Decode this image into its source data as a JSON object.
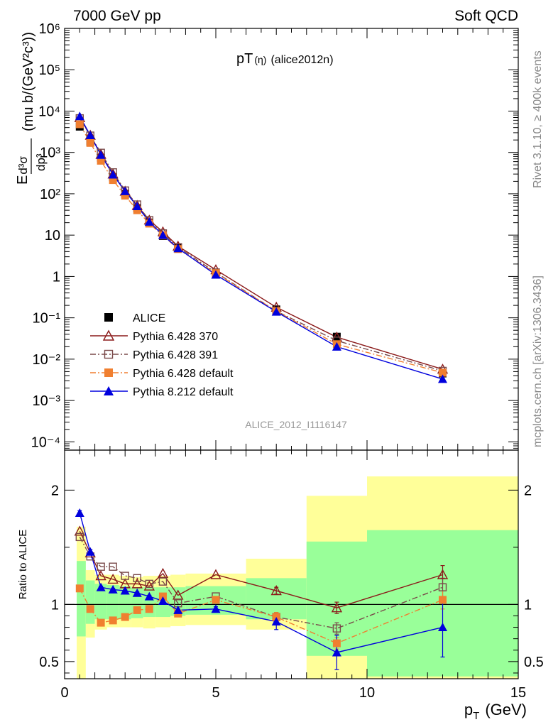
{
  "header": {
    "left": "7000 GeV pp",
    "right": "Soft QCD"
  },
  "side_text": {
    "rivet": "Rivet 3.1.10, ≥ 400k events",
    "mcplots": "mcplots.cern.ch [arXiv:1306.3436]"
  },
  "chart_data": [
    {
      "type": "line",
      "panel": "main",
      "title": "pT(η) (alice2012n)",
      "title_main": "pT",
      "title_paren": "(η)",
      "title_suffix": "(alice2012n)",
      "watermark": "ALICE_2012_I1116147",
      "ylabel_parts": {
        "E": "E",
        "d3sigma": "d³σ",
        "dp3": "dp³",
        "units": "(mu b/(GeV²c³))"
      },
      "xlim": [
        0,
        15
      ],
      "ylim_log10": [
        -4.2,
        6
      ],
      "y_tick_labels": [
        "10⁻⁴",
        "10⁻³",
        "10⁻²",
        "10⁻¹",
        "1",
        "10",
        "10²",
        "10³",
        "10⁴",
        "10⁵",
        "10⁶"
      ],
      "y_tick_values": [
        0.0001,
        0.001,
        0.01,
        0.1,
        1,
        10,
        100,
        1000,
        10000,
        100000,
        1000000
      ],
      "legend": [
        "ALICE",
        "Pythia 6.428 370",
        "Pythia 6.428 391",
        "Pythia 6.428 default",
        "Pythia 8.212 default"
      ],
      "series": [
        {
          "name": "ALICE",
          "color": "#000000",
          "marker": "square-filled",
          "line": "none",
          "x": [
            0.5,
            0.85,
            1.2,
            1.6,
            2.0,
            2.4,
            2.8,
            3.25,
            3.75,
            5.0,
            7.0,
            9.0,
            12.5
          ],
          "values": [
            4200,
            1800,
            740,
            250,
            100,
            45,
            20,
            9.5,
            5.0,
            1.15,
            0.16,
            0.035,
            0.0045
          ]
        },
        {
          "name": "Pythia 6.428 370",
          "color": "#8b1a1a",
          "marker": "triangle-open",
          "line": "solid",
          "x": [
            0.5,
            0.85,
            1.2,
            1.6,
            2.0,
            2.4,
            2.8,
            3.25,
            3.75,
            5.0,
            7.0,
            9.0,
            12.5
          ],
          "values": [
            6900,
            2600,
            900,
            300,
            115,
            52,
            23,
            12,
            5.4,
            1.45,
            0.18,
            0.034,
            0.0057
          ]
        },
        {
          "name": "Pythia 6.428 391",
          "color": "#7a4a4a",
          "marker": "square-open",
          "line": "dashdot",
          "x": [
            0.5,
            0.85,
            1.2,
            1.6,
            2.0,
            2.4,
            2.8,
            3.25,
            3.75,
            5.0,
            7.0,
            9.0,
            12.5
          ],
          "values": [
            6700,
            2550,
            980,
            330,
            120,
            55,
            23,
            11,
            5.1,
            1.25,
            0.145,
            0.028,
            0.0052
          ]
        },
        {
          "name": "Pythia 6.428 default",
          "color": "#f07f30",
          "marker": "square-filled",
          "line": "dashdot",
          "x": [
            0.5,
            0.85,
            1.2,
            1.6,
            2.0,
            2.4,
            2.8,
            3.25,
            3.75,
            5.0,
            7.0,
            9.0,
            12.5
          ],
          "values": [
            4800,
            1700,
            630,
            215,
            90,
            40,
            19,
            9.8,
            4.6,
            1.2,
            0.145,
            0.023,
            0.0047
          ]
        },
        {
          "name": "Pythia 8.212 default",
          "color": "#0000dd",
          "marker": "triangle-filled",
          "line": "solid",
          "x": [
            0.5,
            0.85,
            1.2,
            1.6,
            2.0,
            2.4,
            2.8,
            3.25,
            3.75,
            5.0,
            7.0,
            9.0,
            12.5
          ],
          "values": [
            7500,
            2600,
            870,
            290,
            115,
            50,
            21,
            10,
            4.8,
            1.1,
            0.14,
            0.02,
            0.0033
          ]
        }
      ]
    },
    {
      "type": "line",
      "panel": "ratio",
      "ylabel": "Ratio to ALICE",
      "xlabel_main": "p",
      "xlabel_sub": "T",
      "xlabel_units": "(GeV)",
      "xlim": [
        0,
        15
      ],
      "ylim": [
        0.35,
        2.35
      ],
      "x_tick_labels": [
        "0",
        "5",
        "10",
        "15"
      ],
      "x_tick_values": [
        0,
        5,
        10,
        15
      ],
      "y_tick_labels": [
        "0.5",
        "1",
        "2"
      ],
      "y_tick_values": [
        0.5,
        1,
        2
      ],
      "bands": {
        "edges": [
          0.4,
          0.7,
          1.0,
          1.4,
          1.8,
          2.2,
          2.6,
          3.0,
          3.5,
          4.0,
          6.0,
          8.0,
          10.0,
          15.0
        ],
        "green_lo": [
          0.72,
          0.83,
          0.87,
          0.87,
          0.87,
          0.88,
          0.89,
          0.89,
          0.9,
          0.91,
          0.87,
          0.55,
          0.37
        ],
        "green_hi": [
          1.38,
          1.21,
          1.18,
          1.17,
          1.16,
          1.15,
          1.15,
          1.15,
          1.15,
          1.16,
          1.23,
          1.55,
          1.65
        ],
        "yellow_lo": [
          0.35,
          0.71,
          0.78,
          0.8,
          0.8,
          0.8,
          0.79,
          0.8,
          0.81,
          0.82,
          0.78,
          0.35,
          0.35
        ],
        "yellow_hi": [
          1.68,
          1.3,
          1.26,
          1.26,
          1.25,
          1.24,
          1.25,
          1.25,
          1.26,
          1.27,
          1.4,
          1.95,
          2.12
        ]
      },
      "series": [
        {
          "name": "Pythia 6.428 370",
          "color": "#8b1a1a",
          "marker": "triangle-open",
          "line": "solid",
          "x": [
            0.5,
            0.85,
            1.2,
            1.6,
            2.0,
            2.4,
            2.8,
            3.25,
            3.75,
            5.0,
            7.0,
            9.0,
            12.5
          ],
          "values": [
            1.64,
            1.45,
            1.25,
            1.22,
            1.18,
            1.18,
            1.16,
            1.27,
            1.08,
            1.26,
            1.12,
            0.97,
            1.26
          ],
          "err": [
            0,
            0,
            0,
            0,
            0,
            0,
            0,
            0,
            0,
            0,
            0.03,
            0.05,
            0.08
          ]
        },
        {
          "name": "Pythia 6.428 391",
          "color": "#7a4a4a",
          "marker": "square-open",
          "line": "dashdot",
          "x": [
            0.5,
            0.85,
            1.2,
            1.6,
            2.0,
            2.4,
            2.8,
            3.25,
            3.75,
            5.0,
            7.0,
            9.0,
            12.5
          ],
          "values": [
            1.59,
            1.42,
            1.33,
            1.33,
            1.25,
            1.23,
            1.18,
            1.2,
            1.01,
            1.07,
            0.89,
            0.79,
            1.15
          ],
          "err": [
            0,
            0,
            0,
            0,
            0,
            0,
            0,
            0,
            0,
            0,
            0.04,
            0.05,
            0.08
          ]
        },
        {
          "name": "Pythia 6.428 default",
          "color": "#f07f30",
          "marker": "square-filled",
          "line": "dashdot",
          "x": [
            0.5,
            0.85,
            1.2,
            1.6,
            2.0,
            2.4,
            2.8,
            3.25,
            3.75,
            5.0,
            7.0,
            9.0,
            12.5
          ],
          "values": [
            1.14,
            0.96,
            0.84,
            0.86,
            0.89,
            0.95,
            0.96,
            1.07,
            0.92,
            1.04,
            0.89,
            0.66,
            1.04
          ],
          "err": [
            0,
            0,
            0,
            0,
            0,
            0,
            0,
            0,
            0,
            0,
            0.04,
            0.05,
            0.08
          ]
        },
        {
          "name": "Pythia 8.212 default",
          "color": "#0000dd",
          "marker": "triangle-filled",
          "line": "solid",
          "x": [
            0.5,
            0.85,
            1.2,
            1.6,
            2.0,
            2.4,
            2.8,
            3.25,
            3.75,
            5.0,
            7.0,
            9.0,
            12.5
          ],
          "values": [
            1.8,
            1.46,
            1.15,
            1.13,
            1.12,
            1.1,
            1.07,
            1.03,
            0.95,
            0.96,
            0.85,
            0.58,
            0.8
          ],
          "err": [
            0.02,
            0.02,
            0.01,
            0.01,
            0.01,
            0.01,
            0.01,
            0.01,
            0.01,
            0.02,
            0.07,
            0.15,
            0.26
          ]
        }
      ]
    }
  ]
}
